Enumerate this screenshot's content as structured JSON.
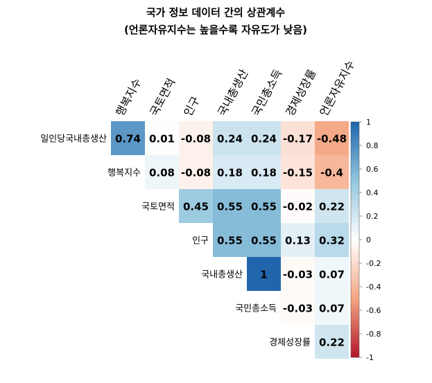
{
  "chart_data": {
    "type": "heatmap",
    "title": "국가 정보 데이터 간의 상관계수",
    "subtitle": "(언론자유지수는 높을수록 자유도가 낮음)",
    "columns": [
      "행복지수",
      "국토면적",
      "인구",
      "국내총생산",
      "국민총소득",
      "경제성장률",
      "언론자유지수"
    ],
    "rows": [
      "일인당국내총생산",
      "행복지수",
      "국토면적",
      "인구",
      "국내총생산",
      "국민총소득",
      "경제성장률"
    ],
    "matrix": [
      [
        0.74,
        0.01,
        -0.08,
        0.24,
        0.24,
        -0.17,
        -0.48
      ],
      [
        null,
        0.08,
        -0.08,
        0.18,
        0.18,
        -0.15,
        -0.4
      ],
      [
        null,
        null,
        0.45,
        0.55,
        0.55,
        -0.02,
        0.22
      ],
      [
        null,
        null,
        null,
        0.55,
        0.55,
        0.13,
        0.32
      ],
      [
        null,
        null,
        null,
        null,
        1,
        -0.03,
        0.07
      ],
      [
        null,
        null,
        null,
        null,
        null,
        -0.03,
        0.07
      ],
      [
        null,
        null,
        null,
        null,
        null,
        null,
        0.22
      ]
    ],
    "colorbar": {
      "range": [
        -1,
        1
      ],
      "ticks": [
        "-1",
        "-0.8",
        "-0.6",
        "-0.4",
        "-0.2",
        "0",
        "0.2",
        "0.4",
        "0.6",
        "0.8",
        "1"
      ],
      "low_color": "#B2182B",
      "mid_color": "#FFFFFF",
      "high_color": "#2166AC"
    }
  }
}
